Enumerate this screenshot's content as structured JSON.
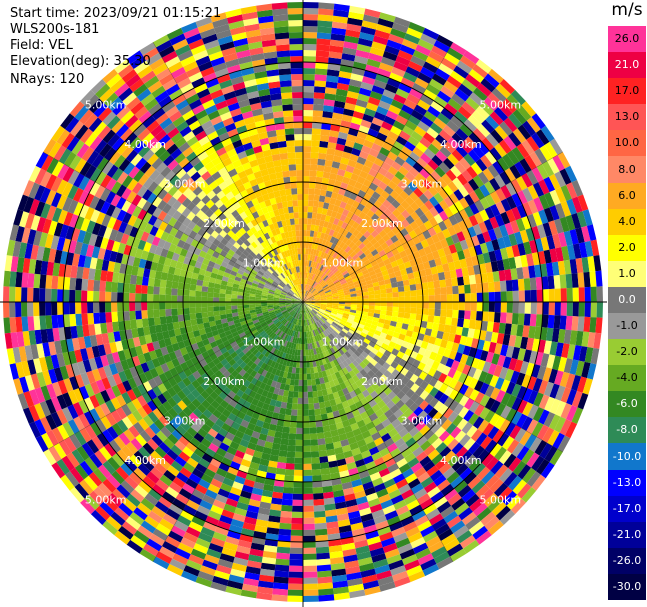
{
  "header": {
    "start_time": "Start time: 2023/09/21 01:15:21",
    "instrument": "WLS200s-181",
    "field": "Field: VEL",
    "elevation": "Elevation(deg): 35.30",
    "nrays": "NRays: 120"
  },
  "colorbar": {
    "unit": "m/s",
    "levels": [
      {
        "label": "26.0",
        "color": "#ff3399"
      },
      {
        "label": "21.0",
        "color": "#ee0044"
      },
      {
        "label": "17.0",
        "color": "#ff2222"
      },
      {
        "label": "13.0",
        "color": "#ff5555"
      },
      {
        "label": "10.0",
        "color": "#ff6644"
      },
      {
        "label": "8.0",
        "color": "#ff8866"
      },
      {
        "label": "6.0",
        "color": "#ffaa22"
      },
      {
        "label": "4.0",
        "color": "#ffcc00"
      },
      {
        "label": "2.0",
        "color": "#ffff00"
      },
      {
        "label": "1.0",
        "color": "#ffff77"
      },
      {
        "label": "0.0",
        "color": "#777777"
      },
      {
        "label": "-1.0",
        "color": "#999999"
      },
      {
        "label": "-2.0",
        "color": "#99cc33"
      },
      {
        "label": "-4.0",
        "color": "#66aa22"
      },
      {
        "label": "-6.0",
        "color": "#338822"
      },
      {
        "label": "-8.0",
        "color": "#2e8b57"
      },
      {
        "label": "-10.0",
        "color": "#1177cc"
      },
      {
        "label": "-13.0",
        "color": "#0000ff"
      },
      {
        "label": "-17.0",
        "color": "#0000cc"
      },
      {
        "label": "-21.0",
        "color": "#000099"
      },
      {
        "label": "-26.0",
        "color": "#000066"
      },
      {
        "label": "-30.0",
        "color": "#000044"
      }
    ]
  },
  "rings": {
    "labels": [
      "1.00km",
      "2.00km",
      "3.00km",
      "4.00km",
      "5.00km"
    ]
  }
}
